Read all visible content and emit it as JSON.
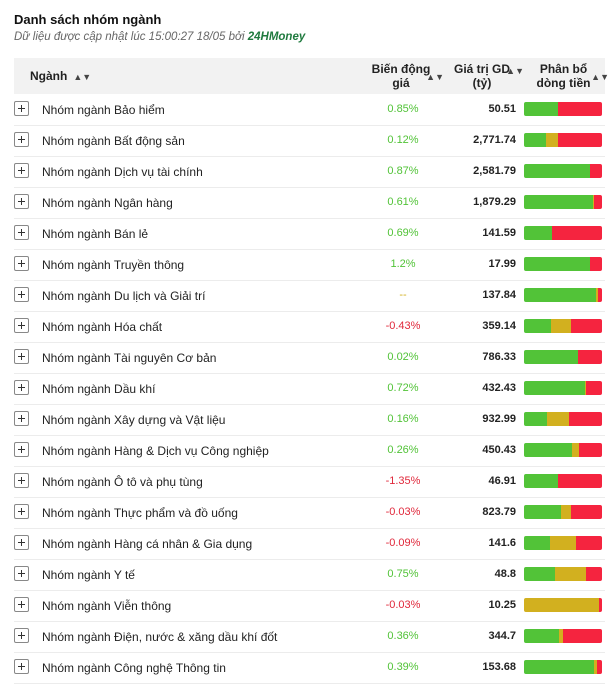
{
  "header": {
    "title": "Danh sách nhóm ngành",
    "subtitle_prefix": "Dữ liệu được cập nhật lúc 15:00:27 18/05 bởi",
    "brand": "24HMoney"
  },
  "columns": {
    "nganh": "Ngành",
    "bien_dong_line1": "Biến động",
    "bien_dong_line2": "giá",
    "gia_tri_line1": "Giá trị GD",
    "gia_tri_line2": "(tỷ)",
    "phan_bo_line1": "Phân bổ",
    "phan_bo_line2": "dòng tiền",
    "sort_icon": "sort-icon"
  },
  "colors": {
    "up": "#52c338",
    "flat": "#d2b01f",
    "down": "#f5243f"
  },
  "rows": [
    {
      "name": "Nhóm ngành Bảo hiểm",
      "change": "0.85%",
      "dir": "pos",
      "value": "50.51",
      "flow": [
        0.44,
        0.0,
        0.56
      ]
    },
    {
      "name": "Nhóm ngành Bất động sản",
      "change": "0.12%",
      "dir": "pos",
      "value": "2,771.74",
      "flow": [
        0.28,
        0.15,
        0.57
      ]
    },
    {
      "name": "Nhóm ngành Dịch vụ tài chính",
      "change": "0.87%",
      "dir": "pos",
      "value": "2,581.79",
      "flow": [
        0.85,
        0.0,
        0.15
      ]
    },
    {
      "name": "Nhóm ngành Ngân hàng",
      "change": "0.61%",
      "dir": "pos",
      "value": "1,879.29",
      "flow": [
        0.88,
        0.02,
        0.1
      ]
    },
    {
      "name": "Nhóm ngành Bán lẻ",
      "change": "0.69%",
      "dir": "pos",
      "value": "141.59",
      "flow": [
        0.36,
        0.0,
        0.64
      ]
    },
    {
      "name": "Nhóm ngành Truyền thông",
      "change": "1.2%",
      "dir": "pos",
      "value": "17.99",
      "flow": [
        0.85,
        0.0,
        0.15
      ]
    },
    {
      "name": "Nhóm ngành Du lịch và Giải trí",
      "change": "--",
      "dir": "neu",
      "value": "137.84",
      "flow": [
        0.92,
        0.03,
        0.05
      ]
    },
    {
      "name": "Nhóm ngành Hóa chất",
      "change": "-0.43%",
      "dir": "neg",
      "value": "359.14",
      "flow": [
        0.35,
        0.25,
        0.4
      ]
    },
    {
      "name": "Nhóm ngành Tài nguyên Cơ bản",
      "change": "0.02%",
      "dir": "pos",
      "value": "786.33",
      "flow": [
        0.69,
        0.0,
        0.31
      ]
    },
    {
      "name": "Nhóm ngành Dầu khí",
      "change": "0.72%",
      "dir": "pos",
      "value": "432.43",
      "flow": [
        0.78,
        0.02,
        0.2
      ]
    },
    {
      "name": "Nhóm ngành Xây dựng và Vật liệu",
      "change": "0.16%",
      "dir": "pos",
      "value": "932.99",
      "flow": [
        0.29,
        0.29,
        0.42
      ]
    },
    {
      "name": "Nhóm ngành Hàng & Dịch vụ Công nghiệp",
      "change": "0.26%",
      "dir": "pos",
      "value": "450.43",
      "flow": [
        0.62,
        0.08,
        0.3
      ]
    },
    {
      "name": "Nhóm ngành Ô tô và phụ tùng",
      "change": "-1.35%",
      "dir": "neg",
      "value": "46.91",
      "flow": [
        0.44,
        0.0,
        0.56
      ]
    },
    {
      "name": "Nhóm ngành Thực phẩm và đồ uống",
      "change": "-0.03%",
      "dir": "neg",
      "value": "823.79",
      "flow": [
        0.47,
        0.13,
        0.4
      ]
    },
    {
      "name": "Nhóm ngành Hàng cá nhân & Gia dụng",
      "change": "-0.09%",
      "dir": "neg",
      "value": "141.6",
      "flow": [
        0.33,
        0.34,
        0.33
      ]
    },
    {
      "name": "Nhóm ngành Y tế",
      "change": "0.75%",
      "dir": "pos",
      "value": "48.8",
      "flow": [
        0.4,
        0.4,
        0.2
      ]
    },
    {
      "name": "Nhóm ngành Viễn thông",
      "change": "-0.03%",
      "dir": "neg",
      "value": "10.25",
      "flow": [
        0.0,
        0.96,
        0.04
      ]
    },
    {
      "name": "Nhóm ngành Điện, nước & xăng dầu khí đốt",
      "change": "0.36%",
      "dir": "pos",
      "value": "344.7",
      "flow": [
        0.45,
        0.05,
        0.5
      ]
    },
    {
      "name": "Nhóm ngành Công nghệ Thông tin",
      "change": "0.39%",
      "dir": "pos",
      "value": "153.68",
      "flow": [
        0.9,
        0.03,
        0.07
      ]
    }
  ]
}
